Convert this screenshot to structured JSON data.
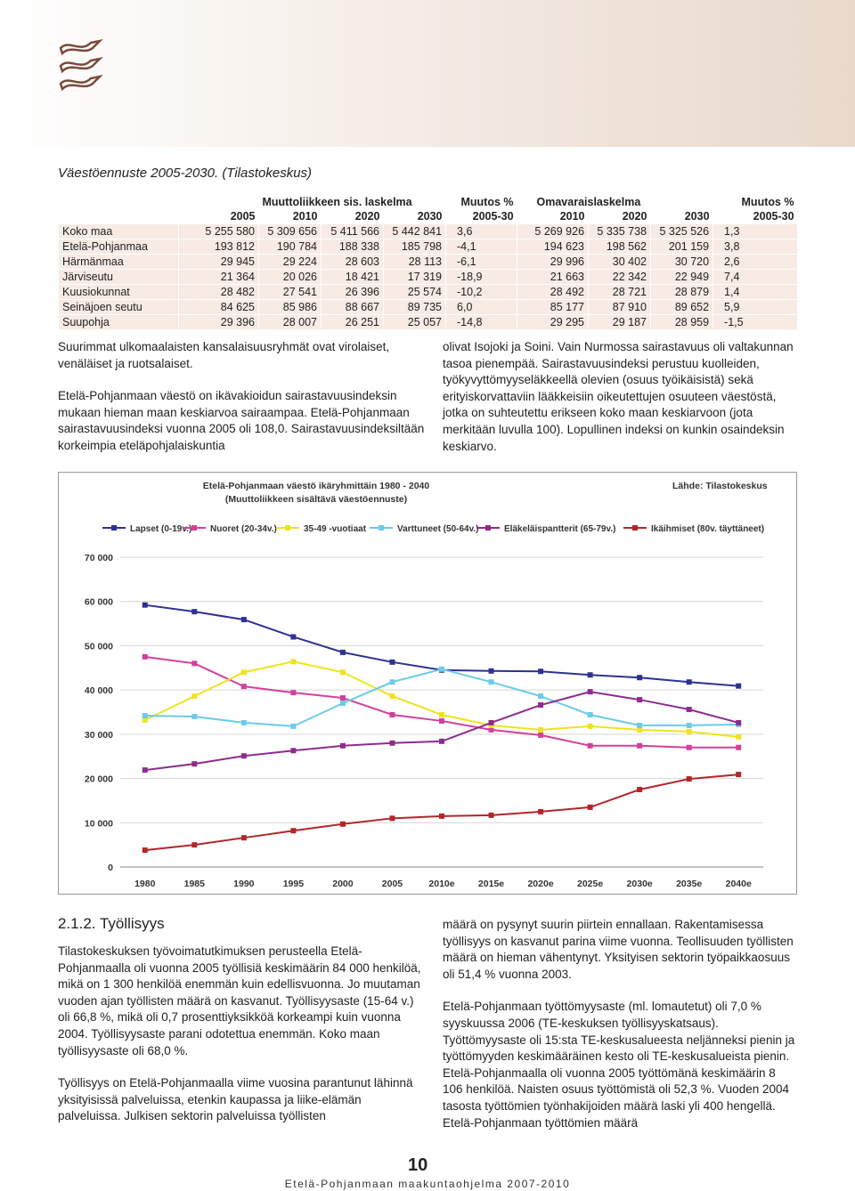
{
  "caption": "Väestöennuste 2005-2030. (Tilastokeskus)",
  "table": {
    "group_headers": [
      "Muuttoliikkeen sis. laskelma",
      "Muutos %",
      "Omavaraislaskelma",
      "Muutos %"
    ],
    "columns": [
      "2005",
      "2010",
      "2020",
      "2030",
      "2005-30",
      "2010",
      "2020",
      "2030",
      "2005-30"
    ],
    "rows": [
      [
        "Koko maa",
        "5 255 580",
        "5 309 656",
        "5 411 566",
        "5 442 841",
        "3,6",
        "5 269 926",
        "5 335 738",
        "5 325 526",
        "1,3"
      ],
      [
        "Etelä-Pohjanmaa",
        "193 812",
        "190 784",
        "188 338",
        "185 798",
        "-4,1",
        "194 623",
        "198 562",
        "201 159",
        "3,8"
      ],
      [
        "Härmänmaa",
        "29 945",
        "29 224",
        "28 603",
        "28 113",
        "-6,1",
        "29 996",
        "30 402",
        "30 720",
        "2,6"
      ],
      [
        "Järviseutu",
        "21 364",
        "20 026",
        "18 421",
        "17 319",
        "-18,9",
        "21 663",
        "22 342",
        "22 949",
        "7,4"
      ],
      [
        "Kuusiokunnat",
        "28 482",
        "27 541",
        "26 396",
        "25 574",
        "-10,2",
        "28 492",
        "28 721",
        "28 879",
        "1,4"
      ],
      [
        "Seinäjoen seutu",
        "84 625",
        "85 986",
        "88 667",
        "89 735",
        "6,0",
        "85 177",
        "87 910",
        "89 652",
        "5,9"
      ],
      [
        "Suupohja",
        "29 396",
        "28 007",
        "26 251",
        "25 057",
        "-14,8",
        "29 295",
        "29 187",
        "28 959",
        "-1,5"
      ]
    ]
  },
  "text_top_left": [
    "Suurimmat ulkomaalaisten kansalaisuusryhmät ovat virolaiset, venäläiset ja ruotsalaiset.",
    "Etelä-Pohjanmaan väestö on ikävakioidun sairastavuusindeksin mukaan hieman maan keskiarvoa sairaampaa. Etelä-Pohjanmaan sairastavuusindeksi vuonna 2005 oli 108,0. Sairastavuusindeksiltään korkeimpia eteläpohjalaiskuntia"
  ],
  "text_top_right": [
    "olivat Isojoki ja Soini. Vain Nurmossa sairastavuus oli valtakunnan tasoa pienempää. Sairastavuusindeksi perustuu kuolleiden, työkyvyttömyyseläkkeellä olevien (osuus työikäisistä) sekä erityiskorvattaviin lääkkeisiin oikeutettujen osuuteen väestöstä, jotka on suhteutettu erikseen koko maan keskiarvoon (jota merkitään luvulla 100). Lopullinen indeksi on kunkin osaindeksin keskiarvo."
  ],
  "chart_data": {
    "type": "line",
    "title": "Etelä-Pohjanmaan väestö ikäryhmittäin 1980 - 2040",
    "subtitle": "(Muuttoliikkeen sisältävä väestöennuste)",
    "source": "Lähde: Tilastokeskus",
    "categories": [
      "1980",
      "1985",
      "1990",
      "1995",
      "2000",
      "2005",
      "2010e",
      "2015e",
      "2020e",
      "2025e",
      "2030e",
      "2035e",
      "2040e"
    ],
    "ylim": [
      0,
      70000
    ],
    "yticks": [
      0,
      {
        "value": 10000,
        "label": "10 000"
      },
      {
        "value": 20000,
        "label": "20 000"
      },
      {
        "value": 30000,
        "label": "30 000"
      },
      {
        "value": 40000,
        "label": "40 000"
      },
      {
        "value": 50000,
        "label": "50 000"
      },
      {
        "value": 60000,
        "label": "60 000"
      },
      {
        "value": 70000,
        "label": "70 000"
      }
    ],
    "grid": true,
    "legend": "top",
    "series": [
      {
        "name": "Lapset (0-19v.)",
        "color": "#2e3192",
        "values": [
          59200,
          57700,
          55900,
          52000,
          48500,
          46300,
          44500,
          44300,
          44200,
          43400,
          42800,
          41800,
          40900
        ]
      },
      {
        "name": "Nuoret (20-34v.)",
        "color": "#d2409c",
        "values": [
          47500,
          46000,
          40800,
          39400,
          38200,
          34400,
          33000,
          31000,
          29800,
          27400,
          27400,
          27000,
          27000
        ]
      },
      {
        "name": "35-49 -vuotiaat",
        "color": "#eee41c",
        "values": [
          33200,
          38600,
          44000,
          46400,
          44000,
          38600,
          34400,
          32000,
          31000,
          31800,
          31000,
          30600,
          29400
        ]
      },
      {
        "name": "Varttuneet (50-64v.)",
        "color": "#6ccbe8",
        "values": [
          34200,
          34000,
          32600,
          31800,
          37000,
          41800,
          44700,
          41800,
          38600,
          34400,
          32000,
          32000,
          32200
        ]
      },
      {
        "name": "Eläkeläispantterit (65-79v.)",
        "color": "#8e2c8e",
        "values": [
          21900,
          23300,
          25100,
          26300,
          27400,
          28000,
          28400,
          32600,
          36600,
          39600,
          37800,
          35600,
          32600
        ]
      },
      {
        "name": "Ikäihmiset (80v. täyttäneet)",
        "color": "#b2262a",
        "values": [
          3800,
          5000,
          6600,
          8200,
          9700,
          11000,
          11500,
          11700,
          12500,
          13500,
          17500,
          19900,
          20900
        ]
      }
    ]
  },
  "section_heading": "2.1.2. Työllisyys",
  "text_bottom_left": [
    "Tilastokeskuksen työvoimatutkimuksen perusteella Etelä-Pohjanmaalla oli vuonna 2005 työllisiä keskimäärin 84 000 henkilöä, mikä on 1 300 henkilöä enemmän kuin edellisvuonna. Jo muutaman vuoden ajan työllisten määrä on kasvanut. Työllisyysaste (15-64 v.) oli 66,8 %, mikä oli 0,7 prosenttiyksikköä korkeampi kuin vuonna 2004. Työllisyysaste parani odotettua enemmän. Koko maan työllisyysaste oli 68,0 %.",
    "Työllisyys on Etelä-Pohjanmaalla viime vuosina parantunut lähinnä yksityisissä palveluissa, etenkin kaupassa ja liike-elämän palveluissa. Julkisen sektorin palveluissa työllisten"
  ],
  "text_bottom_right": [
    "määrä on pysynyt suurin piirtein ennallaan. Rakentamisessa työllisyys on kasvanut parina viime vuonna. Teollisuuden työllisten määrä on hieman vähentynyt. Yksityisen sektorin työpaikkaosuus oli 51,4 % vuonna 2003.",
    "Etelä-Pohjanmaan työttömyysaste (ml. lomautetut) oli 7,0 % syyskuussa 2006 (TE-keskuksen työllisyyskatsaus). Työttömyysaste oli 15:sta TE-keskusalueesta neljänneksi pienin ja työttömyyden keskimääräinen kesto oli TE-keskusalueista pienin. Etelä-Pohjanmaalla oli vuonna 2005 työttömänä keskimäärin 8 106 henkilöä. Naisten osuus työttömistä oli 52,3 %. Vuoden 2004 tasosta työttömien työnhakijoiden määrä laski yli 400 hengellä. Etelä-Pohjanmaan työttömien määrä"
  ],
  "footer": {
    "page_number": "10",
    "title": "Etelä-Pohjanmaan maakuntaohjelma 2007-2010"
  }
}
